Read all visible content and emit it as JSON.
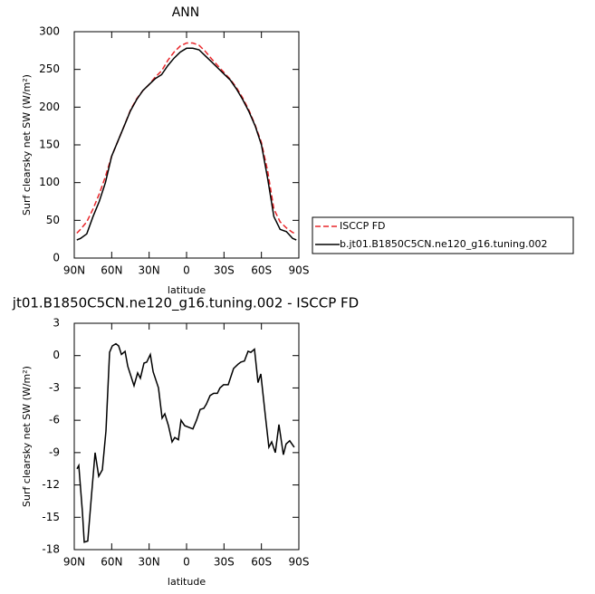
{
  "chart_data": [
    {
      "type": "line",
      "title": "ANN",
      "xlabel": "latitude",
      "ylabel": "Surf clearsky net SW (W/m²)",
      "x": [
        88,
        85,
        80,
        75,
        70,
        65,
        60,
        55,
        50,
        45,
        40,
        35,
        30,
        25,
        20,
        15,
        10,
        5,
        0,
        -5,
        -10,
        -15,
        -20,
        -25,
        -30,
        -35,
        -40,
        -45,
        -50,
        -55,
        -60,
        -65,
        -70,
        -75,
        -80,
        -85,
        -88
      ],
      "series": [
        {
          "name": "ISCCP FD",
          "color": "#e8262a",
          "line_style": "dashed",
          "values": [
            33,
            38,
            48,
            65,
            85,
            108,
            135,
            155,
            175,
            196,
            211,
            222,
            230,
            240,
            248,
            262,
            273,
            281,
            285,
            285,
            282,
            274,
            264,
            255,
            246,
            237,
            226,
            212,
            196,
            176,
            153,
            115,
            65,
            48,
            40,
            34,
            32
          ]
        },
        {
          "name": "b.jt01.B1850C5CN.ne120_g16.tuning.002",
          "color": "#000000",
          "line_style": "solid",
          "values": [
            24,
            26,
            32,
            55,
            75,
            100,
            135,
            155,
            175,
            195,
            210,
            222,
            230,
            238,
            243,
            255,
            265,
            273,
            278,
            278,
            276,
            268,
            260,
            252,
            244,
            236,
            224,
            210,
            194,
            175,
            150,
            105,
            55,
            38,
            35,
            26,
            24
          ]
        }
      ],
      "xlim": [
        90,
        -90
      ],
      "xticks": [
        {
          "value": 90,
          "label": "90N"
        },
        {
          "value": 60,
          "label": "60N"
        },
        {
          "value": 30,
          "label": "30N"
        },
        0,
        {
          "value": -30,
          "label": "30S"
        },
        {
          "value": -60,
          "label": "60S"
        },
        {
          "value": -90,
          "label": "90S"
        }
      ],
      "ylim": [
        0,
        300
      ],
      "yticks": [
        0,
        50,
        100,
        150,
        200,
        250,
        300
      ],
      "legend": "right"
    },
    {
      "type": "line",
      "title": "jt01.B1850C5CN.ne120_g16.tuning.002 - ISCCP FD",
      "xlabel": "latitude",
      "ylabel": "Surf clearsky net SW (W/m²)",
      "x": [
        87.8,
        86.4,
        83.5,
        82,
        79.2,
        76.2,
        73.3,
        70.4,
        67.5,
        64.6,
        61.7,
        59.5,
        56.6,
        54.4,
        52.2,
        49.3,
        47.1,
        42.1,
        39.2,
        37,
        34.1,
        31.9,
        29,
        26.8,
        22.5,
        19.6,
        17.4,
        14.5,
        11.6,
        9.4,
        6.5,
        4.4,
        1.5,
        -5.1,
        -8,
        -10.9,
        -13.8,
        -15.9,
        -18.9,
        -21.8,
        -24.7,
        -26.8,
        -29.7,
        -33.4,
        -37.7,
        -41.3,
        -43.5,
        -46.4,
        -49.3,
        -51.5,
        -54.4,
        -57.3,
        -59.5,
        -63.1,
        -66,
        -68.2,
        -71.1,
        -74,
        -77.6,
        -79.8,
        -82.7,
        -86.3
      ],
      "series": [
        {
          "name": "difference",
          "color": "#000000",
          "line_style": "solid",
          "values": [
            -10.5,
            -10.2,
            -14.5,
            -17.3,
            -17.2,
            -13,
            -9,
            -11.2,
            -10.6,
            -7,
            0.3,
            0.9,
            1.1,
            0.9,
            0.1,
            0.4,
            -1,
            -2.8,
            -1.6,
            -2.1,
            -0.7,
            -0.6,
            0.1,
            -1.5,
            -3,
            -5.8,
            -5.4,
            -6.5,
            -8,
            -7.6,
            -7.8,
            -6,
            -6.5,
            -6.8,
            -6,
            -5,
            -4.9,
            -4.5,
            -3.7,
            -3.5,
            -3.5,
            -3,
            -2.7,
            -2.7,
            -1.2,
            -0.8,
            -0.6,
            -0.5,
            0.4,
            0.3,
            0.6,
            -2.5,
            -1.7,
            -5.5,
            -8.5,
            -8,
            -9,
            -6.4,
            -9.2,
            -8.2,
            -7.9,
            -8.5
          ]
        }
      ],
      "xlim": [
        90,
        -90
      ],
      "xticks": [
        {
          "value": 90,
          "label": "90N"
        },
        {
          "value": 60,
          "label": "60N"
        },
        {
          "value": 30,
          "label": "30N"
        },
        0,
        {
          "value": -30,
          "label": "30S"
        },
        {
          "value": -60,
          "label": "60S"
        },
        {
          "value": -90,
          "label": "90S"
        }
      ],
      "ylim": [
        -18,
        3
      ],
      "yticks": [
        3,
        0,
        -3,
        -6,
        -9,
        -12,
        -15,
        -18
      ]
    }
  ]
}
